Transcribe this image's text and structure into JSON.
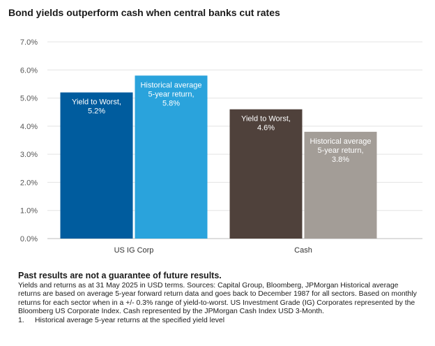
{
  "title": "Bond yields outperform cash when central banks cut rates",
  "chart_data": {
    "type": "bar",
    "categories": [
      "US IG Corp",
      "Cash"
    ],
    "series": [
      {
        "name": "Yield to Worst",
        "values": [
          5.2,
          4.6
        ],
        "labels": [
          [
            "Yield to Worst,",
            "5.2%"
          ],
          [
            "Yield to Worst,",
            "4.6%"
          ]
        ],
        "colors": [
          "#005c9e",
          "#4f413b"
        ]
      },
      {
        "name": "Historical average 5-year return",
        "values": [
          5.8,
          3.8
        ],
        "labels": [
          [
            "Historical average",
            "5-year return,",
            "5.8%"
          ],
          [
            "Historical average",
            "5-year return,",
            "3.8%"
          ]
        ],
        "colors": [
          "#2aa3dc",
          "#a39d97"
        ]
      }
    ],
    "yticks": [
      "7.0%",
      "6.0%",
      "5.0%",
      "4.0%",
      "3.0%",
      "2.0%",
      "1.0%",
      "0.0%"
    ],
    "ylim": [
      0,
      7
    ],
    "grid": true
  },
  "footer": {
    "disclaimer": "Past results are not a guarantee of future results.",
    "source": "Yields and returns as at 31 May 2025 in USD terms. Sources: Capital Group, Bloomberg, JPMorgan Historical average returns are based on average 5-year forward return data and goes back to December 1987 for all sectors. Based on monthly returns for each sector when in a +/- 0.3% range of yield-to-worst. US Investment Grade (IG) Corporates represented by the Bloomberg US Corporate Index. Cash represented by the JPMorgan Cash Index USD 3-Month.",
    "note_number": "1.",
    "note_text": "Historical average 5-year returns at the specified yield level"
  }
}
